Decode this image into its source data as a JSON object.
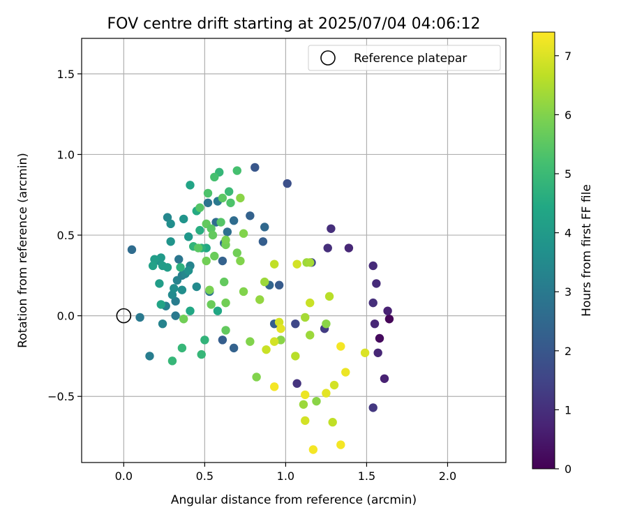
{
  "chart_data": {
    "type": "scatter",
    "title": "FOV centre drift starting at 2025/07/04 04:06:12",
    "xlabel": "Angular distance from reference (arcmin)",
    "ylabel": "Rotation from reference (arcmin)",
    "xlim": [
      -0.26,
      2.36
    ],
    "ylim": [
      -0.91,
      1.72
    ],
    "xticks": [
      0.0,
      0.5,
      1.0,
      1.5,
      2.0
    ],
    "xtick_labels": [
      "0.0",
      "0.5",
      "1.0",
      "1.5",
      "2.0"
    ],
    "yticks": [
      -0.5,
      0.0,
      0.5,
      1.0,
      1.5
    ],
    "ytick_labels": [
      "−0.5",
      "0.0",
      "0.5",
      "1.0",
      "1.5"
    ],
    "grid": true,
    "legend": {
      "position": "top-right",
      "entries": [
        "Reference platepar"
      ]
    },
    "reference_point": {
      "x": 0.0,
      "y": 0.0
    },
    "colorbar": {
      "label": "Hours from first FF file",
      "colormap": "viridis",
      "range": [
        0,
        7.4
      ],
      "ticks": [
        0,
        1,
        2,
        3,
        4,
        5,
        6,
        7
      ],
      "tick_labels": [
        "0",
        "1",
        "2",
        "3",
        "4",
        "5",
        "6",
        "7"
      ]
    },
    "points": [
      {
        "x": 1.64,
        "y": -0.02,
        "c": 0.1
      },
      {
        "x": 1.58,
        "y": -0.14,
        "c": 0.2
      },
      {
        "x": 1.63,
        "y": 0.03,
        "c": 0.7
      },
      {
        "x": 1.61,
        "y": -0.39,
        "c": 0.7
      },
      {
        "x": 1.57,
        "y": -0.23,
        "c": 0.8
      },
      {
        "x": 1.55,
        "y": -0.05,
        "c": 0.8
      },
      {
        "x": 1.56,
        "y": 0.2,
        "c": 0.9
      },
      {
        "x": 1.54,
        "y": 0.31,
        "c": 0.9
      },
      {
        "x": 1.54,
        "y": 0.08,
        "c": 1.0
      },
      {
        "x": 1.54,
        "y": -0.57,
        "c": 1.2
      },
      {
        "x": 1.39,
        "y": 0.42,
        "c": 0.8
      },
      {
        "x": 1.28,
        "y": 0.54,
        "c": 1.0
      },
      {
        "x": 1.26,
        "y": 0.42,
        "c": 1.0
      },
      {
        "x": 1.24,
        "y": -0.08,
        "c": 1.3
      },
      {
        "x": 1.07,
        "y": -0.42,
        "c": 1.1
      },
      {
        "x": 1.06,
        "y": -0.05,
        "c": 1.6
      },
      {
        "x": 1.16,
        "y": 0.33,
        "c": 1.6
      },
      {
        "x": 1.01,
        "y": 0.82,
        "c": 1.8
      },
      {
        "x": 0.81,
        "y": 0.92,
        "c": 2.0
      },
      {
        "x": 0.96,
        "y": 0.19,
        "c": 2.1
      },
      {
        "x": 0.93,
        "y": -0.05,
        "c": 2.2
      },
      {
        "x": 0.9,
        "y": 0.19,
        "c": 2.4
      },
      {
        "x": 0.86,
        "y": 0.46,
        "c": 2.2
      },
      {
        "x": 0.87,
        "y": 0.55,
        "c": 2.5
      },
      {
        "x": 0.78,
        "y": 0.62,
        "c": 2.3
      },
      {
        "x": 0.68,
        "y": 0.59,
        "c": 2.6
      },
      {
        "x": 0.68,
        "y": -0.2,
        "c": 2.3
      },
      {
        "x": 0.61,
        "y": -0.15,
        "c": 2.2
      },
      {
        "x": 0.61,
        "y": 0.34,
        "c": 2.3
      },
      {
        "x": 0.62,
        "y": 0.45,
        "c": 2.5
      },
      {
        "x": 0.64,
        "y": 0.52,
        "c": 2.7
      },
      {
        "x": 0.57,
        "y": 0.58,
        "c": 2.6
      },
      {
        "x": 0.52,
        "y": 0.7,
        "c": 2.8
      },
      {
        "x": 0.58,
        "y": 0.71,
        "c": 3.0
      },
      {
        "x": 0.53,
        "y": 0.15,
        "c": 2.8
      },
      {
        "x": 0.05,
        "y": 0.41,
        "c": 2.6
      },
      {
        "x": 0.1,
        "y": -0.01,
        "c": 3.0
      },
      {
        "x": 0.16,
        "y": -0.25,
        "c": 3.1
      },
      {
        "x": 0.26,
        "y": 0.06,
        "c": 3.2
      },
      {
        "x": 0.24,
        "y": -0.05,
        "c": 3.3
      },
      {
        "x": 0.32,
        "y": 0.0,
        "c": 3.0
      },
      {
        "x": 0.32,
        "y": 0.09,
        "c": 3.1
      },
      {
        "x": 0.33,
        "y": 0.22,
        "c": 3.3
      },
      {
        "x": 0.34,
        "y": 0.35,
        "c": 2.9
      },
      {
        "x": 0.36,
        "y": 0.25,
        "c": 3.2
      },
      {
        "x": 0.38,
        "y": 0.26,
        "c": 3.4
      },
      {
        "x": 0.3,
        "y": 0.13,
        "c": 3.5
      },
      {
        "x": 0.31,
        "y": 0.17,
        "c": 3.6
      },
      {
        "x": 0.36,
        "y": 0.16,
        "c": 3.6
      },
      {
        "x": 0.41,
        "y": 0.31,
        "c": 3.3
      },
      {
        "x": 0.4,
        "y": 0.28,
        "c": 3.7
      },
      {
        "x": 0.45,
        "y": 0.18,
        "c": 3.5
      },
      {
        "x": 0.27,
        "y": 0.61,
        "c": 3.4
      },
      {
        "x": 0.29,
        "y": 0.57,
        "c": 3.6
      },
      {
        "x": 0.37,
        "y": 0.6,
        "c": 3.8
      },
      {
        "x": 0.29,
        "y": 0.46,
        "c": 3.8
      },
      {
        "x": 0.4,
        "y": 0.49,
        "c": 3.9
      },
      {
        "x": 0.22,
        "y": 0.34,
        "c": 3.8
      },
      {
        "x": 0.23,
        "y": 0.36,
        "c": 4.0
      },
      {
        "x": 0.24,
        "y": 0.31,
        "c": 4.1
      },
      {
        "x": 0.27,
        "y": 0.3,
        "c": 4.1
      },
      {
        "x": 0.19,
        "y": 0.35,
        "c": 4.1
      },
      {
        "x": 0.18,
        "y": 0.31,
        "c": 4.2
      },
      {
        "x": 0.22,
        "y": 0.2,
        "c": 4.1
      },
      {
        "x": 0.23,
        "y": 0.07,
        "c": 4.3
      },
      {
        "x": 0.41,
        "y": 0.03,
        "c": 4.4
      },
      {
        "x": 0.41,
        "y": 0.81,
        "c": 4.3
      },
      {
        "x": 0.45,
        "y": 0.65,
        "c": 4.5
      },
      {
        "x": 0.51,
        "y": 0.42,
        "c": 4.4
      },
      {
        "x": 0.47,
        "y": 0.53,
        "c": 4.6
      },
      {
        "x": 0.58,
        "y": 0.03,
        "c": 4.4
      },
      {
        "x": 0.35,
        "y": 0.3,
        "c": 4.7
      },
      {
        "x": 0.43,
        "y": 0.43,
        "c": 4.8
      },
      {
        "x": 0.48,
        "y": 0.42,
        "c": 4.7
      },
      {
        "x": 0.5,
        "y": -0.15,
        "c": 4.8
      },
      {
        "x": 0.48,
        "y": -0.24,
        "c": 4.9
      },
      {
        "x": 0.36,
        "y": -0.2,
        "c": 4.9
      },
      {
        "x": 0.3,
        "y": -0.28,
        "c": 4.9
      },
      {
        "x": 0.59,
        "y": 0.89,
        "c": 4.9
      },
      {
        "x": 0.65,
        "y": 0.77,
        "c": 5.0
      },
      {
        "x": 0.7,
        "y": 0.9,
        "c": 5.2
      },
      {
        "x": 0.52,
        "y": 0.76,
        "c": 5.3
      },
      {
        "x": 0.56,
        "y": 0.86,
        "c": 5.2
      },
      {
        "x": 0.66,
        "y": 0.7,
        "c": 5.3
      },
      {
        "x": 0.61,
        "y": 0.73,
        "c": 5.5
      },
      {
        "x": 0.47,
        "y": 0.67,
        "c": 5.4
      },
      {
        "x": 0.51,
        "y": 0.57,
        "c": 5.6
      },
      {
        "x": 0.54,
        "y": 0.54,
        "c": 5.5
      },
      {
        "x": 0.6,
        "y": 0.58,
        "c": 5.4
      },
      {
        "x": 0.55,
        "y": 0.5,
        "c": 5.6
      },
      {
        "x": 0.56,
        "y": 0.37,
        "c": 5.7
      },
      {
        "x": 0.51,
        "y": 0.34,
        "c": 5.8
      },
      {
        "x": 0.63,
        "y": 0.44,
        "c": 5.8
      },
      {
        "x": 0.63,
        "y": 0.47,
        "c": 5.9
      },
      {
        "x": 0.7,
        "y": 0.39,
        "c": 5.8
      },
      {
        "x": 0.72,
        "y": 0.34,
        "c": 6.0
      },
      {
        "x": 0.62,
        "y": 0.21,
        "c": 5.6
      },
      {
        "x": 0.53,
        "y": 0.16,
        "c": 5.9
      },
      {
        "x": 0.54,
        "y": 0.07,
        "c": 5.7
      },
      {
        "x": 0.63,
        "y": 0.08,
        "c": 5.8
      },
      {
        "x": 0.63,
        "y": -0.09,
        "c": 5.6
      },
      {
        "x": 0.46,
        "y": 0.42,
        "c": 5.5
      },
      {
        "x": 0.37,
        "y": -0.02,
        "c": 5.8
      },
      {
        "x": 0.74,
        "y": 0.51,
        "c": 6.0
      },
      {
        "x": 0.72,
        "y": 0.73,
        "c": 6.1
      },
      {
        "x": 0.74,
        "y": 0.15,
        "c": 6.0
      },
      {
        "x": 0.78,
        "y": -0.16,
        "c": 6.0
      },
      {
        "x": 0.84,
        "y": 0.1,
        "c": 6.2
      },
      {
        "x": 0.82,
        "y": -0.38,
        "c": 6.0
      },
      {
        "x": 0.87,
        "y": 0.21,
        "c": 6.3
      },
      {
        "x": 0.97,
        "y": -0.15,
        "c": 6.1
      },
      {
        "x": 1.13,
        "y": 0.33,
        "c": 6.3
      },
      {
        "x": 1.15,
        "y": 0.33,
        "c": 6.4
      },
      {
        "x": 1.12,
        "y": -0.01,
        "c": 6.4
      },
      {
        "x": 1.15,
        "y": -0.12,
        "c": 6.3
      },
      {
        "x": 1.19,
        "y": -0.53,
        "c": 6.1
      },
      {
        "x": 1.11,
        "y": -0.55,
        "c": 6.3
      },
      {
        "x": 1.25,
        "y": -0.05,
        "c": 6.1
      },
      {
        "x": 1.27,
        "y": 0.12,
        "c": 6.6
      },
      {
        "x": 1.15,
        "y": 0.08,
        "c": 6.8
      },
      {
        "x": 1.06,
        "y": -0.25,
        "c": 6.6
      },
      {
        "x": 1.07,
        "y": 0.32,
        "c": 6.9
      },
      {
        "x": 0.93,
        "y": 0.32,
        "c": 6.7
      },
      {
        "x": 0.96,
        "y": -0.04,
        "c": 6.9
      },
      {
        "x": 0.93,
        "y": -0.16,
        "c": 6.9
      },
      {
        "x": 0.88,
        "y": -0.21,
        "c": 6.8
      },
      {
        "x": 1.12,
        "y": -0.65,
        "c": 6.9
      },
      {
        "x": 1.29,
        "y": -0.66,
        "c": 6.7
      },
      {
        "x": 1.3,
        "y": -0.43,
        "c": 6.9
      },
      {
        "x": 1.25,
        "y": -0.48,
        "c": 7.1
      },
      {
        "x": 1.12,
        "y": -0.49,
        "c": 7.2
      },
      {
        "x": 0.97,
        "y": -0.08,
        "c": 7.1
      },
      {
        "x": 0.93,
        "y": -0.44,
        "c": 7.3
      },
      {
        "x": 1.34,
        "y": -0.19,
        "c": 7.3
      },
      {
        "x": 1.37,
        "y": -0.35,
        "c": 7.2
      },
      {
        "x": 1.34,
        "y": -0.8,
        "c": 7.3
      },
      {
        "x": 1.17,
        "y": -0.83,
        "c": 7.3
      },
      {
        "x": 1.49,
        "y": -0.23,
        "c": 7.0
      }
    ]
  }
}
